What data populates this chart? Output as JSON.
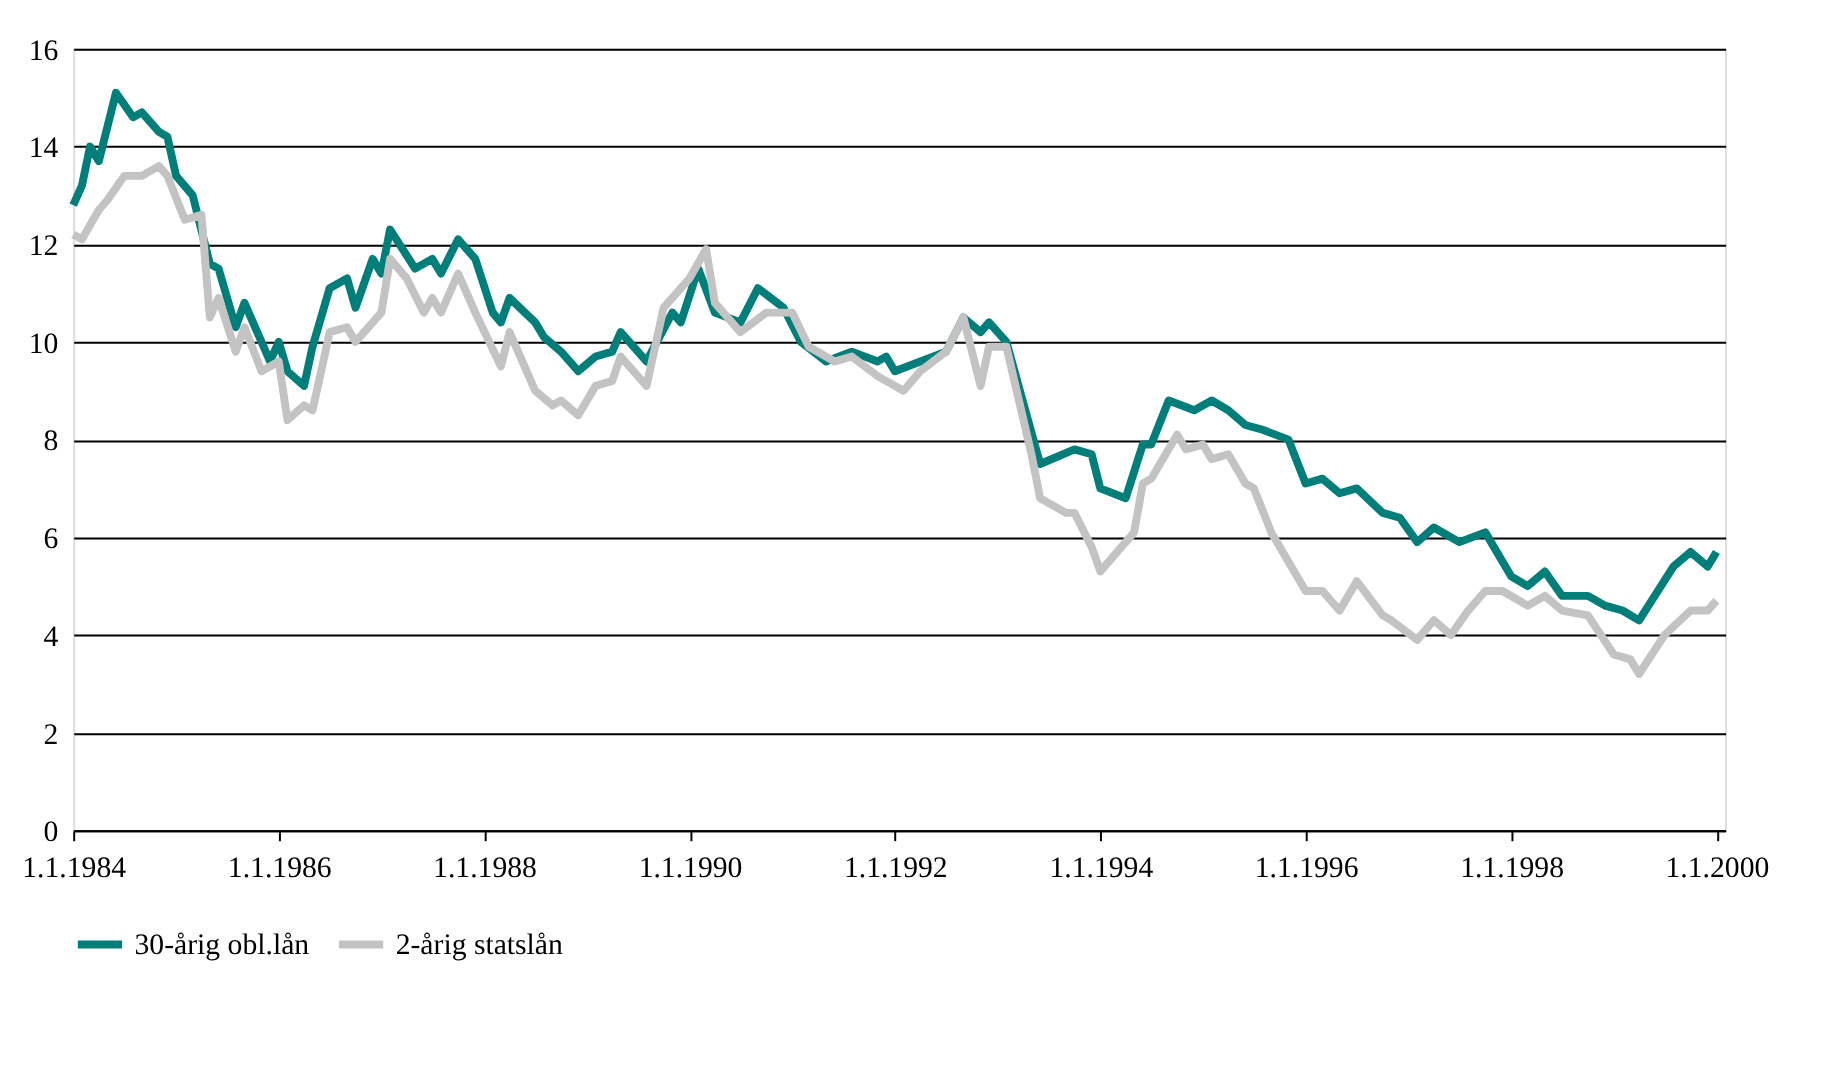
{
  "chart_data": {
    "type": "line",
    "xlim": [
      "1984-01-01",
      "2000-02-01"
    ],
    "xticks": [
      {
        "value": "1984-01-01",
        "label": "1.1.1984"
      },
      {
        "value": "1986-01-01",
        "label": "1.1.1986"
      },
      {
        "value": "1988-01-01",
        "label": "1.1.1988"
      },
      {
        "value": "1990-01-01",
        "label": "1.1.1990"
      },
      {
        "value": "1992-01-01",
        "label": "1.1.1992"
      },
      {
        "value": "1994-01-01",
        "label": "1.1.1994"
      },
      {
        "value": "1996-01-01",
        "label": "1.1.1996"
      },
      {
        "value": "1998-01-01",
        "label": "1.1.1998"
      },
      {
        "value": "2000-01-01",
        "label": "1.1.2000"
      }
    ],
    "ylim": [
      0,
      16
    ],
    "yticks": [
      0,
      2,
      4,
      6,
      8,
      10,
      12,
      14,
      16
    ],
    "grid": "y",
    "legend": "bottom",
    "marker": "none",
    "line_style": "solid",
    "series": [
      {
        "name": "30-årig obl.lån",
        "color": "#007f7a",
        "x": [
          "1984-01",
          "1984-02",
          "1984-03",
          "1984-04",
          "1984-06",
          "1984-08",
          "1984-09",
          "1984-11",
          "1984-12",
          "1985-01",
          "1985-03",
          "1985-05",
          "1985-06",
          "1985-08",
          "1985-09",
          "1985-12",
          "1986-01",
          "1986-02",
          "1986-04",
          "1986-05",
          "1986-07",
          "1986-09",
          "1986-10",
          "1986-12",
          "1987-01",
          "1987-02",
          "1987-05",
          "1987-07",
          "1987-08",
          "1987-10",
          "1987-12",
          "1988-02",
          "1988-03",
          "1988-04",
          "1988-07",
          "1988-08",
          "1988-10",
          "1988-12",
          "1989-02",
          "1989-04",
          "1989-05",
          "1989-08",
          "1989-11",
          "1989-12",
          "1990-02",
          "1990-04",
          "1990-07",
          "1990-09",
          "1990-12",
          "1991-02",
          "1991-05",
          "1991-08",
          "1991-11",
          "1991-12",
          "1992-01",
          "1992-04",
          "1992-07",
          "1992-09",
          "1992-11",
          "1992-12",
          "1993-02",
          "1993-06",
          "1993-10",
          "1993-12",
          "1994-01",
          "1994-04",
          "1994-06",
          "1994-07",
          "1994-09",
          "1994-12",
          "1995-02",
          "1995-04",
          "1995-06",
          "1995-08",
          "1995-11",
          "1996-01",
          "1996-03",
          "1996-05",
          "1996-07",
          "1996-10",
          "1996-12",
          "1997-02",
          "1997-04",
          "1997-07",
          "1997-10",
          "1998-01",
          "1998-03",
          "1998-05",
          "1998-07",
          "1998-10",
          "1998-12",
          "1999-02",
          "1999-04",
          "1999-08",
          "1999-10",
          "1999-12",
          "2000-01"
        ],
        "values": [
          12.8,
          13.2,
          14.0,
          13.7,
          15.1,
          14.6,
          14.7,
          14.3,
          14.2,
          13.4,
          13.0,
          11.6,
          11.5,
          10.3,
          10.8,
          9.6,
          10.0,
          9.4,
          9.1,
          9.9,
          11.1,
          11.3,
          10.7,
          11.7,
          11.4,
          12.3,
          11.5,
          11.7,
          11.4,
          12.1,
          11.7,
          10.6,
          10.4,
          10.9,
          10.4,
          10.1,
          9.8,
          9.4,
          9.7,
          9.8,
          10.2,
          9.6,
          10.6,
          10.4,
          11.5,
          10.6,
          10.4,
          11.1,
          10.7,
          10.0,
          9.6,
          9.8,
          9.6,
          9.7,
          9.4,
          9.6,
          9.8,
          10.5,
          10.2,
          10.4,
          10.0,
          7.5,
          7.8,
          7.7,
          7.0,
          6.8,
          7.9,
          7.9,
          8.8,
          8.6,
          8.8,
          8.6,
          8.3,
          8.2,
          8.0,
          7.1,
          7.2,
          6.9,
          7.0,
          6.5,
          6.4,
          5.9,
          6.2,
          5.9,
          6.1,
          5.2,
          5.0,
          5.3,
          4.8,
          4.8,
          4.6,
          4.5,
          4.3,
          5.4,
          5.7,
          5.4,
          5.7
        ]
      },
      {
        "name": "2-årig statslån",
        "color": "#c3c3c3",
        "x": [
          "1984-01",
          "1984-02",
          "1984-04",
          "1984-05",
          "1984-07",
          "1984-09",
          "1984-11",
          "1984-12",
          "1985-02",
          "1985-04",
          "1985-05",
          "1985-06",
          "1985-08",
          "1985-09",
          "1985-11",
          "1986-01",
          "1986-02",
          "1986-04",
          "1986-05",
          "1986-06",
          "1986-07",
          "1986-09",
          "1986-10",
          "1987-01",
          "1987-02",
          "1987-04",
          "1987-06",
          "1987-07",
          "1987-08",
          "1987-10",
          "1987-12",
          "1988-03",
          "1988-04",
          "1988-07",
          "1988-09",
          "1988-10",
          "1988-12",
          "1989-02",
          "1989-04",
          "1989-05",
          "1989-08",
          "1989-10",
          "1990-01",
          "1990-03",
          "1990-04",
          "1990-07",
          "1990-10",
          "1991-01",
          "1991-03",
          "1991-06",
          "1991-08",
          "1991-11",
          "1992-02",
          "1992-04",
          "1992-07",
          "1992-09",
          "1992-11",
          "1992-12",
          "1993-02",
          "1993-05",
          "1993-06",
          "1993-09",
          "1993-10",
          "1993-12",
          "1994-01",
          "1994-05",
          "1994-06",
          "1994-07",
          "1994-10",
          "1994-11",
          "1995-01",
          "1995-02",
          "1995-04",
          "1995-06",
          "1995-07",
          "1995-09",
          "1996-01",
          "1996-03",
          "1996-05",
          "1996-07",
          "1996-10",
          "1996-11",
          "1997-02",
          "1997-04",
          "1997-06",
          "1997-08",
          "1997-10",
          "1997-12",
          "1998-03",
          "1998-05",
          "1998-07",
          "1998-10",
          "1999-01",
          "1999-03",
          "1999-04",
          "1999-07",
          "1999-10",
          "1999-12",
          "2000-01"
        ],
        "values": [
          12.2,
          12.1,
          12.7,
          12.9,
          13.4,
          13.4,
          13.6,
          13.4,
          12.5,
          12.6,
          10.5,
          10.9,
          9.8,
          10.3,
          9.4,
          9.6,
          8.4,
          8.7,
          8.6,
          9.4,
          10.2,
          10.3,
          10.0,
          10.6,
          11.7,
          11.3,
          10.6,
          10.9,
          10.6,
          11.4,
          10.6,
          9.5,
          10.2,
          9.0,
          8.7,
          8.8,
          8.5,
          9.1,
          9.2,
          9.7,
          9.1,
          10.7,
          11.3,
          11.9,
          10.8,
          10.2,
          10.6,
          10.6,
          9.9,
          9.6,
          9.7,
          9.3,
          9.0,
          9.4,
          9.8,
          10.5,
          9.1,
          9.9,
          9.9,
          7.7,
          6.8,
          6.5,
          6.5,
          5.8,
          5.3,
          6.1,
          7.1,
          7.2,
          8.1,
          7.8,
          7.9,
          7.6,
          7.7,
          7.1,
          7.0,
          6.1,
          4.9,
          4.9,
          4.5,
          5.1,
          4.4,
          4.3,
          3.9,
          4.3,
          4.0,
          4.5,
          4.9,
          4.9,
          4.6,
          4.8,
          4.5,
          4.4,
          3.6,
          3.5,
          3.2,
          4.0,
          4.5,
          4.5,
          4.7
        ]
      }
    ]
  }
}
